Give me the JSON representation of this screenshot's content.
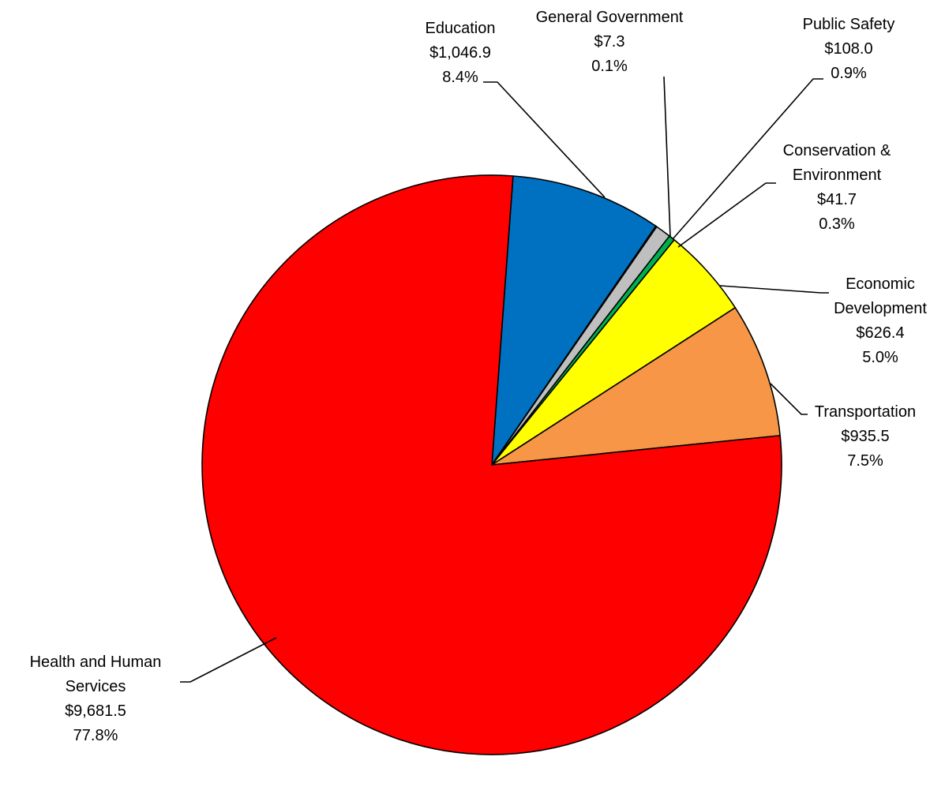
{
  "chart_data": {
    "type": "pie",
    "title": "",
    "slices": [
      {
        "name": "Education",
        "value": 1046.9,
        "value_label": "$1,046.9",
        "percent_label": "8.4%",
        "color": "#0070C0"
      },
      {
        "name": "General Government",
        "value": 7.3,
        "value_label": "$7.3",
        "percent_label": "0.1%",
        "color": "#000000"
      },
      {
        "name": "Public Safety",
        "value": 108.0,
        "value_label": "$108.0",
        "percent_label": "0.9%",
        "color": "#BFBFBF"
      },
      {
        "name": "Conservation & Environment",
        "value": 41.7,
        "value_label": "$41.7",
        "percent_label": "0.3%",
        "color": "#00B050"
      },
      {
        "name": "Economic Development",
        "value": 626.4,
        "value_label": "$626.4",
        "percent_label": "5.0%",
        "color": "#FFFF00"
      },
      {
        "name": "Transportation",
        "value": 935.5,
        "value_label": "$935.5",
        "percent_label": "7.5%",
        "color": "#F79646"
      },
      {
        "name": "Health and Human Services",
        "value": 9681.5,
        "value_label": "$9,681.5",
        "percent_label": "77.8%",
        "color": "#FF0000"
      }
    ],
    "legend": "none",
    "data_labels": "outside with leader lines"
  }
}
